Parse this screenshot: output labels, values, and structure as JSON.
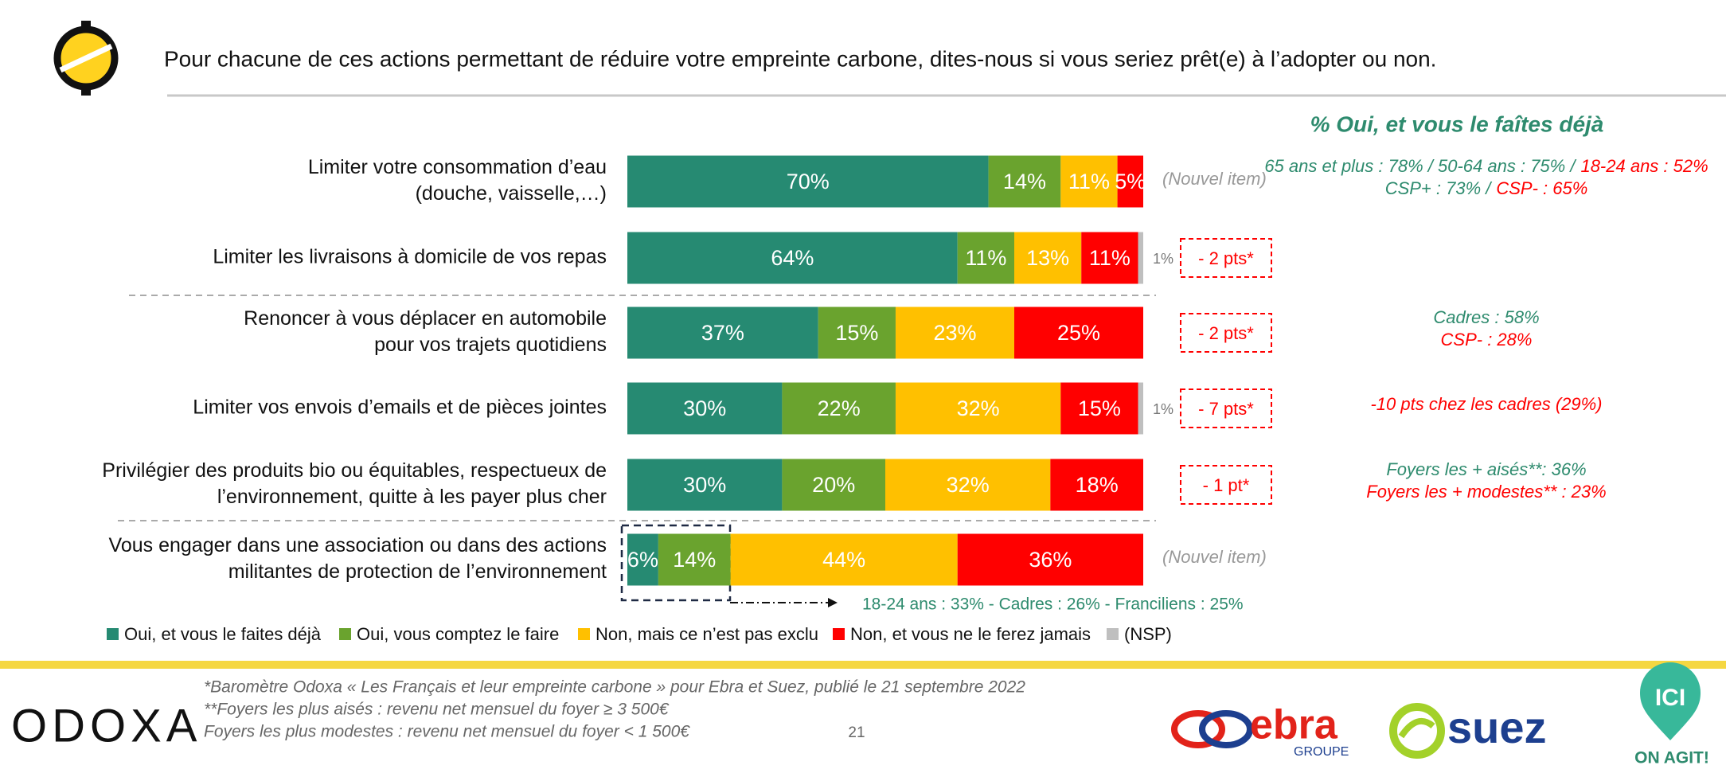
{
  "chart_data": {
    "type": "stacked_bar",
    "title": "Pour chacune de ces actions permettant de réduire votre empreinte carbone, dites-nous si vous seriez prêt(e) à l’adopter ou non.",
    "categories": [
      [
        "Limiter votre consommation d’eau",
        "(douche, vaisselle,…)"
      ],
      [
        "Limiter les livraisons à domicile de vos repas"
      ],
      [
        "Renoncer à vous déplacer en automobile",
        "pour vos trajets quotidiens"
      ],
      [
        "Limiter vos envois d’emails et de pièces jointes"
      ],
      [
        "Privilégier des produits bio ou équitables, respectueux de",
        "l’environnement, quitte à les payer plus cher"
      ],
      [
        "Vous engager dans une association ou dans des actions",
        "militantes de protection de l’environnement"
      ]
    ],
    "series": [
      {
        "name": "Oui, et vous le faites déjà",
        "color": "#268a72",
        "values": [
          70,
          64,
          37,
          30,
          30,
          6
        ],
        "value_labels": [
          "70%",
          "64%",
          "37%",
          "30%",
          "30%",
          "6%"
        ]
      },
      {
        "name": "Oui, vous comptez le faire",
        "color": "#6aa32e",
        "values": [
          14,
          11,
          15,
          22,
          20,
          14
        ],
        "value_labels": [
          "14%",
          "11%",
          "15%",
          "22%",
          "20%",
          "14%"
        ]
      },
      {
        "name": "Non, mais ce n’est pas exclu",
        "color": "#ffc000",
        "values": [
          11,
          13,
          23,
          32,
          32,
          44
        ],
        "value_labels": [
          "11%",
          "13%",
          "23%",
          "32%",
          "32%",
          "44%"
        ]
      },
      {
        "name": "Non, et vous ne le ferez jamais",
        "color": "#ff0000",
        "values": [
          5,
          11,
          25,
          15,
          18,
          36
        ],
        "value_labels": [
          "5%",
          "11%",
          "25%",
          "15%",
          "18%",
          "36%"
        ]
      },
      {
        "name": "(NSP)",
        "color": "#bfbfbf",
        "values": [
          null,
          1,
          null,
          1,
          null,
          null
        ],
        "value_labels": [
          null,
          "1%",
          null,
          "1%",
          null,
          null
        ],
        "label_position": "outside"
      }
    ],
    "evolutions": [
      {
        "text": "(Nouvel item)",
        "boxed": false
      },
      {
        "text": "- 2 pts*",
        "boxed": true
      },
      {
        "text": "- 2 pts*",
        "boxed": true
      },
      {
        "text": "- 7 pts*",
        "boxed": true
      },
      {
        "text": "- 1 pt*",
        "boxed": true
      },
      {
        "text": "(Nouvel item)",
        "boxed": false
      }
    ],
    "notes_title": "% Oui, et vous le faîtes déjà",
    "notes": [
      [
        [
          {
            "text": "65 ans et plus : 78% / 50-64 ans : 75% /",
            "color": "#2e8b6e"
          },
          {
            "text": "18-24 ans : 52%",
            "color": "#ff0000"
          }
        ],
        [
          {
            "text": "CSP+ : 73% /",
            "color": "#2e8b6e"
          },
          {
            "text": "CSP- : 65%",
            "color": "#ff0000"
          }
        ]
      ],
      null,
      [
        [
          {
            "text": "Cadres : 58%",
            "color": "#2e8b6e"
          }
        ],
        [
          {
            "text": "CSP- : 28%",
            "color": "#ff0000"
          }
        ]
      ],
      [
        [
          {
            "text": "-10 pts chez les cadres (29%)",
            "color": "#ff0000"
          }
        ]
      ],
      [
        [
          {
            "text": "Foyers les + aisés**: 36%",
            "color": "#2e8b6e"
          }
        ],
        [
          {
            "text": "Foyers les + modestes** : 23%",
            "color": "#ff0000"
          }
        ]
      ],
      null
    ],
    "highlight_note": "18-24 ans : 33% - Cadres : 26% - Franciliens : 25%"
  },
  "footer": {
    "footnotes": [
      "*Baromètre Odoxa « Les Français et leur empreinte carbone » pour Ebra et Suez, publié le 21 septembre 2022",
      "**Foyers les plus aisés : revenu net mensuel du foyer ≥ 3 500€",
      "Foyers les plus modestes : revenu net mensuel du foyer < 1 500€"
    ],
    "page_number": "21",
    "logos": {
      "odoxa": "ODOXA",
      "ebra": "ebra",
      "ebra_sub": "GROUPE",
      "suez": "suez",
      "ici": "ICI",
      "ici_sub": "ON AGIT!"
    }
  }
}
